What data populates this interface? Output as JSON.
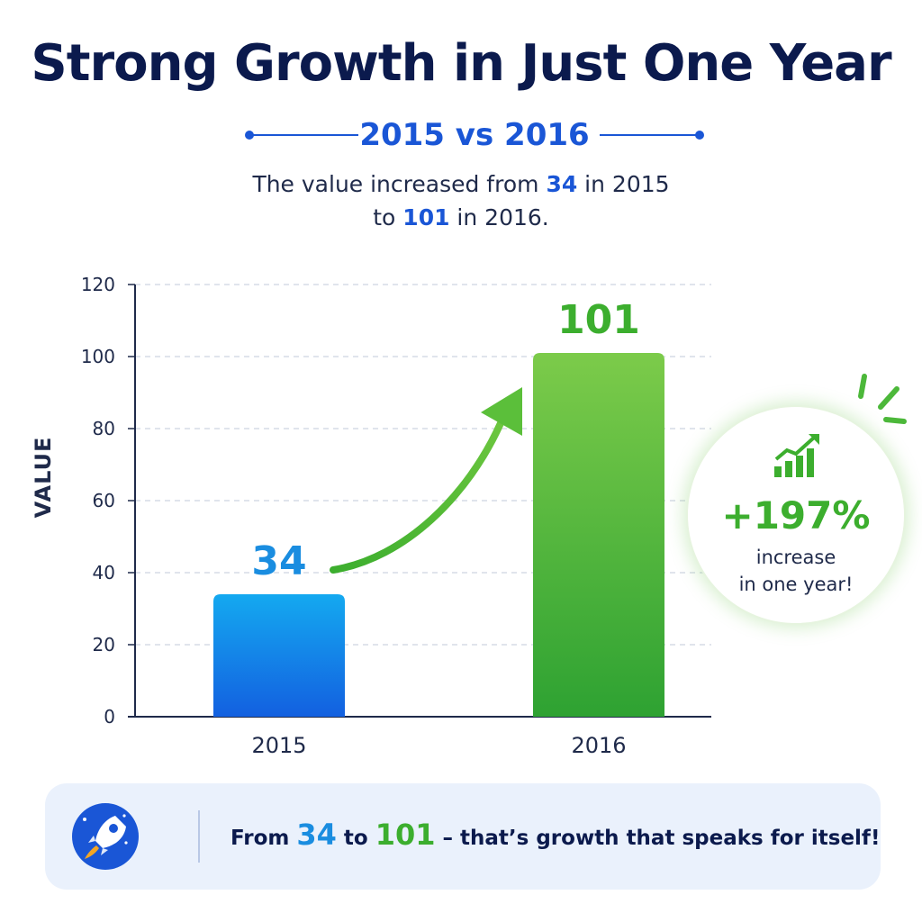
{
  "title": "Strong Growth in Just One Year",
  "subtitle": "2015 vs 2016",
  "description": {
    "part1": "The value increased from ",
    "v2015": "34",
    "part2": " in 2015",
    "part3": "to ",
    "v2016": "101",
    "part4": " in 2016."
  },
  "badge": {
    "percent": "+197%",
    "line1": "increase",
    "line2": "in one year!",
    "icon": "growth-chart-icon"
  },
  "banner": {
    "from": "From ",
    "v1": "34",
    "to": " to ",
    "v2": "101",
    "rest": " – that’s growth that speaks for itself!",
    "icon": "rocket-icon"
  },
  "colors": {
    "blue_bar": "#1a8de0",
    "green_bar": "#3cae2e",
    "accent_blue": "#1a56d6",
    "accent_green": "#3cae2e",
    "title": "#0b1a4d"
  },
  "chart_data": {
    "type": "bar",
    "categories": [
      "2015",
      "2016"
    ],
    "values": [
      34,
      101
    ],
    "data_labels": [
      "34",
      "101"
    ],
    "xlabel": "",
    "ylabel": "VALUE",
    "ylim": [
      0,
      120
    ],
    "yticks": [
      0,
      20,
      40,
      60,
      80,
      100,
      120
    ],
    "grid": true,
    "legend": "none"
  }
}
